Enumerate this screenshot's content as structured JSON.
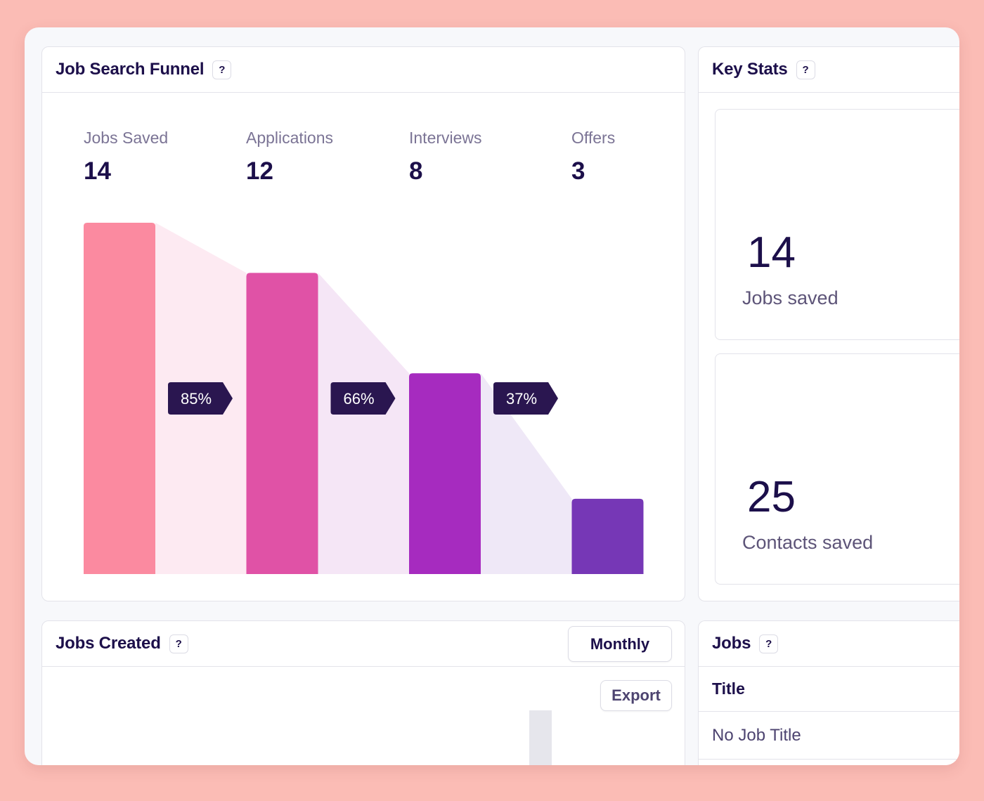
{
  "funnel": {
    "title": "Job Search Funnel",
    "help": "?",
    "stages": [
      {
        "label": "Jobs Saved",
        "value": "14",
        "color": "#fb8aa0"
      },
      {
        "label": "Applications",
        "value": "12",
        "color": "#e052a6"
      },
      {
        "label": "Interviews",
        "value": "8",
        "color": "#a62bbf"
      },
      {
        "label": "Offers",
        "value": "3",
        "color": "#7637b6"
      }
    ],
    "conversions": [
      "85%",
      "66%",
      "37%"
    ]
  },
  "key_stats": {
    "title": "Key Stats",
    "help": "?",
    "stats": [
      {
        "value": "14",
        "label": "Jobs saved"
      },
      {
        "value": "25",
        "label": "Contacts saved"
      }
    ]
  },
  "jobs_created": {
    "title": "Jobs Created",
    "help": "?",
    "period_button": "Monthly",
    "export_button": "Export"
  },
  "jobs": {
    "title": "Jobs",
    "help": "?",
    "columns": [
      "Title"
    ],
    "rows": [
      [
        "No Job Title"
      ]
    ]
  },
  "colors": {
    "background": "#fbbcb5",
    "text": "#1c0f4a",
    "badge": "#2a1650"
  }
}
